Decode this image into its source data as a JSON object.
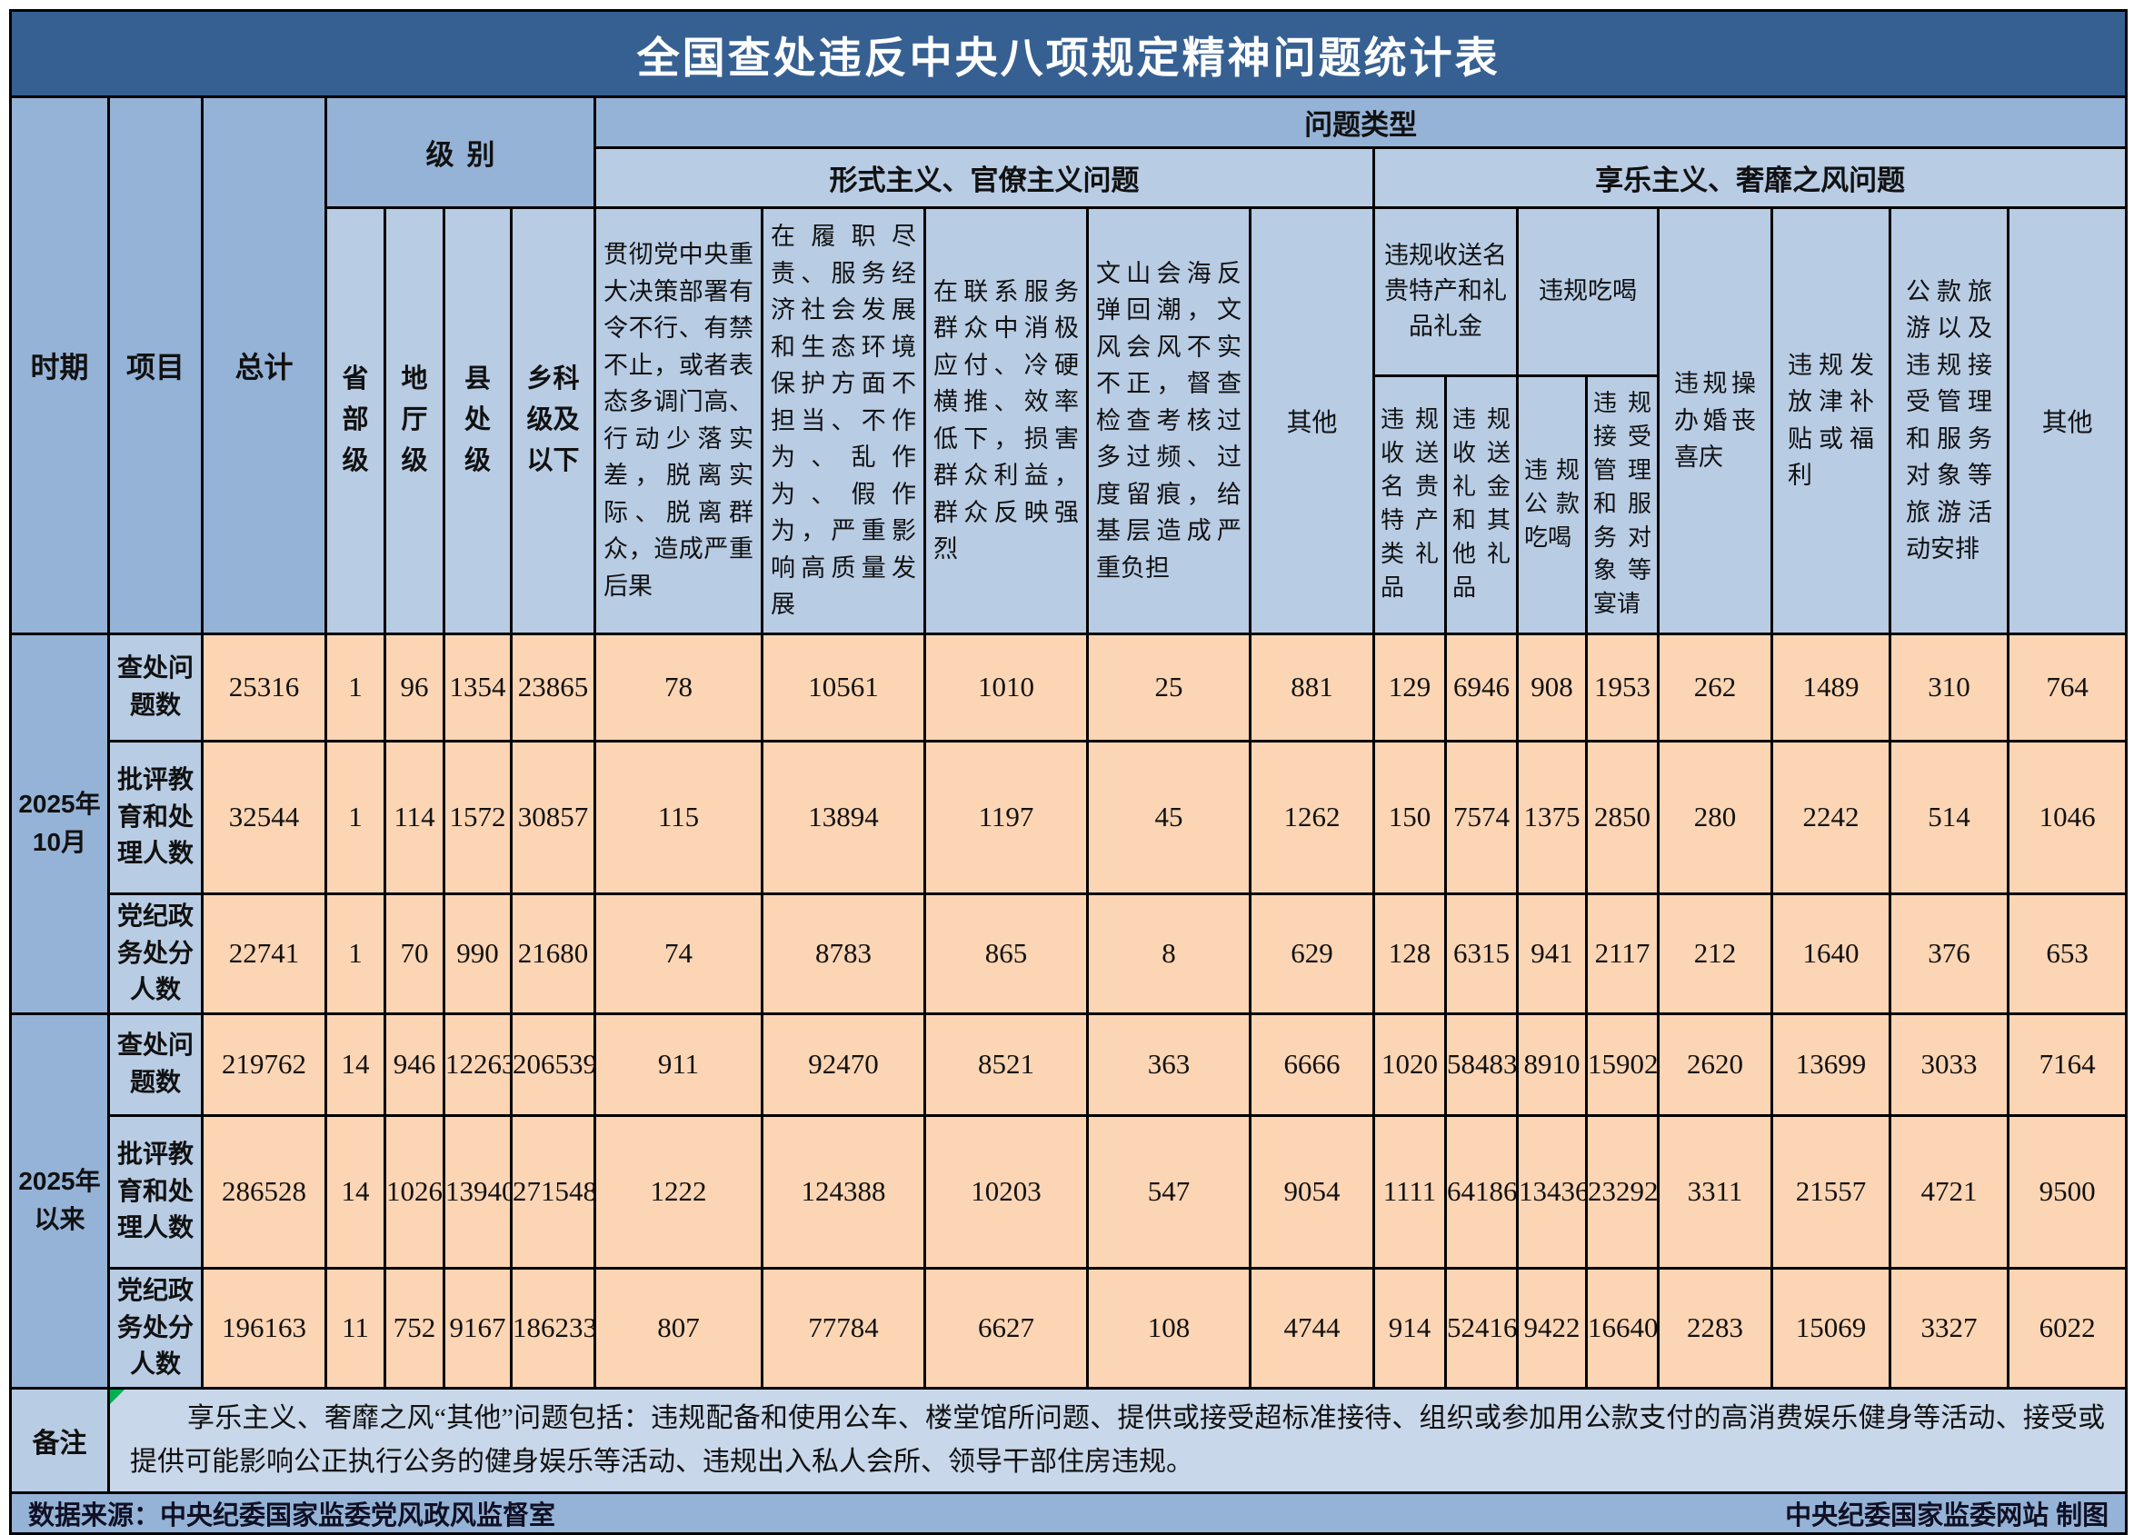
{
  "title": "全国查处违反中央八项规定精神问题统计表",
  "header": {
    "period": "时期",
    "item": "项目",
    "total": "总计",
    "level_group": "级别",
    "levels": [
      "省部级",
      "地厅级",
      "县处级",
      "乡科级及以下"
    ],
    "problem_type_group": "问题类型",
    "formalism_group": "形式主义、官僚主义问题",
    "hedonism_group": "享乐主义、奢靡之风问题",
    "formalism_cols": [
      "贯彻党中央重大决策部署有令不行、有禁不止，或者表态多调门高、行动少落实差，脱离实际、脱离群众，造成严重后果",
      "在履职尽责、服务经济社会发展和生态环境保护方面不担当、不作为、乱作为、假作为，严重影响高质量发展",
      "在联系服务群众中消极应付、冷硬横推、效率低下，损害群众利益，群众反映强烈",
      "文山会海反弹回潮，文风会风不实不正，督查检查考核过多过频、过度留痕，给基层造成严重负担",
      "其他"
    ],
    "gift_group": "违规收送名贵特产和礼品礼金",
    "eat_group": "违规吃喝",
    "gift_sub": [
      "违规收送名贵特产类礼品",
      "违规收送礼金和其他礼品"
    ],
    "eat_sub": [
      "违规公款吃喝",
      "违规接受管理和服务对象等宴请"
    ],
    "hedonism_cols": [
      "违规操办婚丧喜庆",
      "违规发放津补贴或福利",
      "公款旅游以及违规接受管理和服务对象等旅游活动安排",
      "其他"
    ]
  },
  "periods": [
    {
      "label": "2025年10月",
      "rows": [
        {
          "item": "查处问题数",
          "values": [
            25316,
            1,
            96,
            1354,
            23865,
            78,
            10561,
            1010,
            25,
            881,
            129,
            6946,
            908,
            1953,
            262,
            1489,
            310,
            764
          ]
        },
        {
          "item": "批评教育和处理人数",
          "values": [
            32544,
            1,
            114,
            1572,
            30857,
            115,
            13894,
            1197,
            45,
            1262,
            150,
            7574,
            1375,
            2850,
            280,
            2242,
            514,
            1046
          ]
        },
        {
          "item": "党纪政务处分人数",
          "values": [
            22741,
            1,
            70,
            990,
            21680,
            74,
            8783,
            865,
            8,
            629,
            128,
            6315,
            941,
            2117,
            212,
            1640,
            376,
            653
          ]
        }
      ]
    },
    {
      "label": "2025年以来",
      "rows": [
        {
          "item": "查处问题数",
          "values": [
            219762,
            14,
            946,
            12263,
            206539,
            911,
            92470,
            8521,
            363,
            6666,
            1020,
            58483,
            8910,
            15902,
            2620,
            13699,
            3033,
            7164
          ]
        },
        {
          "item": "批评教育和处理人数",
          "values": [
            286528,
            14,
            1026,
            13940,
            271548,
            1222,
            124388,
            10203,
            547,
            9054,
            1111,
            64186,
            13436,
            23292,
            3311,
            21557,
            4721,
            9500
          ]
        },
        {
          "item": "党纪政务处分人数",
          "values": [
            196163,
            11,
            752,
            9167,
            186233,
            807,
            77784,
            6627,
            108,
            4744,
            914,
            52416,
            9422,
            16640,
            2283,
            15069,
            3327,
            6022
          ]
        }
      ]
    }
  ],
  "note": {
    "label": "备注",
    "text": "享乐主义、奢靡之风“其他”问题包括：违规配备和使用公车、楼堂馆所问题、提供或接受超标准接待、组织或参加用公款支付的高消费娱乐健身等活动、接受或提供可能影响公正执行公务的健身娱乐等活动、违规出入私人会所、领导干部住房违规。"
  },
  "footer": {
    "source": "数据来源：中央纪委国家监委党风政风监督室",
    "credit": "中央纪委国家监委网站 制图"
  },
  "colors": {
    "title_bg": "#366092",
    "header_mid_bg": "#95b3d7",
    "header_light_bg": "#b8cce4",
    "data_bg": "#fcd5b4",
    "note_bg": "#c9d7ea",
    "border": "#000000",
    "flag_green": "#00b050"
  },
  "chart_data": {
    "type": "table",
    "title": "全国查处违反中央八项规定精神问题统计表",
    "row_groups": [
      "2025年10月",
      "2025年以来"
    ],
    "row_items": [
      "查处问题数",
      "批评教育和处理人数",
      "党纪政务处分人数"
    ],
    "columns": [
      "总计",
      "省部级",
      "地厅级",
      "县处级",
      "乡科级及以下",
      "贯彻党中央重大决策部署有令不行、有禁不止，或者表态多调门高、行动少落实差，脱离实际、脱离群众，造成严重后果",
      "在履职尽责、服务经济社会发展和生态环境保护方面不担当、不作为、乱作为、假作为，严重影响高质量发展",
      "在联系服务群众中消极应付、冷硬横推、效率低下，损害群众利益，群众反映强烈",
      "文山会海反弹回潮，文风会风不实不正，督查检查考核过多过频、过度留痕，给基层造成严重负担",
      "形式主义其他",
      "违规收送名贵特产类礼品",
      "违规收送礼金和其他礼品",
      "违规公款吃喝",
      "违规接受管理和服务对象等宴请",
      "违规操办婚丧喜庆",
      "违规发放津补贴或福利",
      "公款旅游以及违规接受管理和服务对象等旅游活动安排",
      "享乐主义其他"
    ],
    "rows": [
      {
        "group": "2025年10月",
        "item": "查处问题数",
        "values": [
          25316,
          1,
          96,
          1354,
          23865,
          78,
          10561,
          1010,
          25,
          881,
          129,
          6946,
          908,
          1953,
          262,
          1489,
          310,
          764
        ]
      },
      {
        "group": "2025年10月",
        "item": "批评教育和处理人数",
        "values": [
          32544,
          1,
          114,
          1572,
          30857,
          115,
          13894,
          1197,
          45,
          1262,
          150,
          7574,
          1375,
          2850,
          280,
          2242,
          514,
          1046
        ]
      },
      {
        "group": "2025年10月",
        "item": "党纪政务处分人数",
        "values": [
          22741,
          1,
          70,
          990,
          21680,
          74,
          8783,
          865,
          8,
          629,
          128,
          6315,
          941,
          2117,
          212,
          1640,
          376,
          653
        ]
      },
      {
        "group": "2025年以来",
        "item": "查处问题数",
        "values": [
          219762,
          14,
          946,
          12263,
          206539,
          911,
          92470,
          8521,
          363,
          6666,
          1020,
          58483,
          8910,
          15902,
          2620,
          13699,
          3033,
          7164
        ]
      },
      {
        "group": "2025年以来",
        "item": "批评教育和处理人数",
        "values": [
          286528,
          14,
          1026,
          13940,
          271548,
          1222,
          124388,
          10203,
          547,
          9054,
          1111,
          64186,
          13436,
          23292,
          3311,
          21557,
          4721,
          9500
        ]
      },
      {
        "group": "2025年以来",
        "item": "党纪政务处分人数",
        "values": [
          196163,
          11,
          752,
          9167,
          186233,
          807,
          77784,
          6627,
          108,
          4744,
          914,
          52416,
          9422,
          16640,
          2283,
          15069,
          3327,
          6022
        ]
      }
    ]
  }
}
